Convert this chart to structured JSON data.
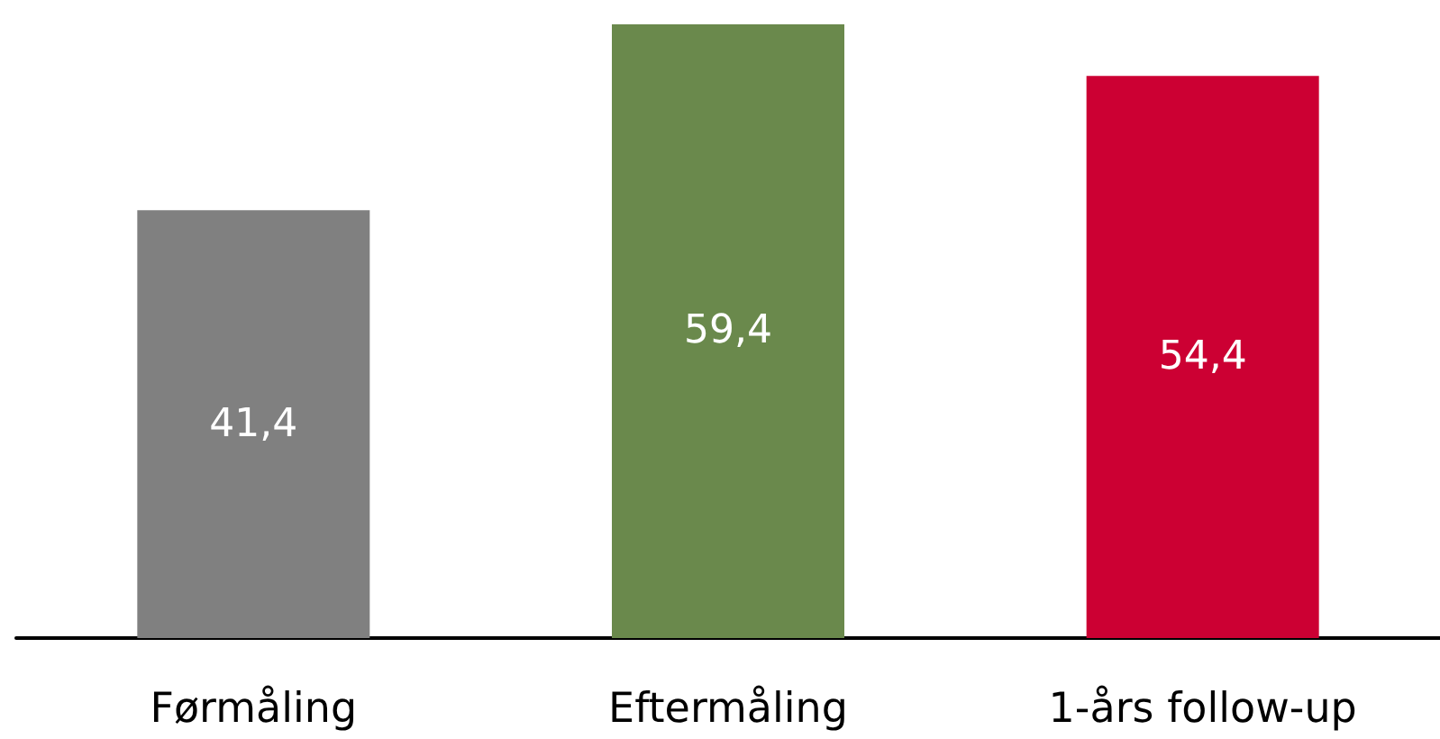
{
  "chart_data": {
    "type": "bar",
    "categories": [
      "Førmåling",
      "Eftermåling",
      "1-års follow-up"
    ],
    "values": [
      41.4,
      59.4,
      54.4
    ],
    "value_labels": [
      "41,4",
      "59,4",
      "54,4"
    ],
    "colors": [
      "#808080",
      "#6a894c",
      "#cc0033"
    ]
  }
}
